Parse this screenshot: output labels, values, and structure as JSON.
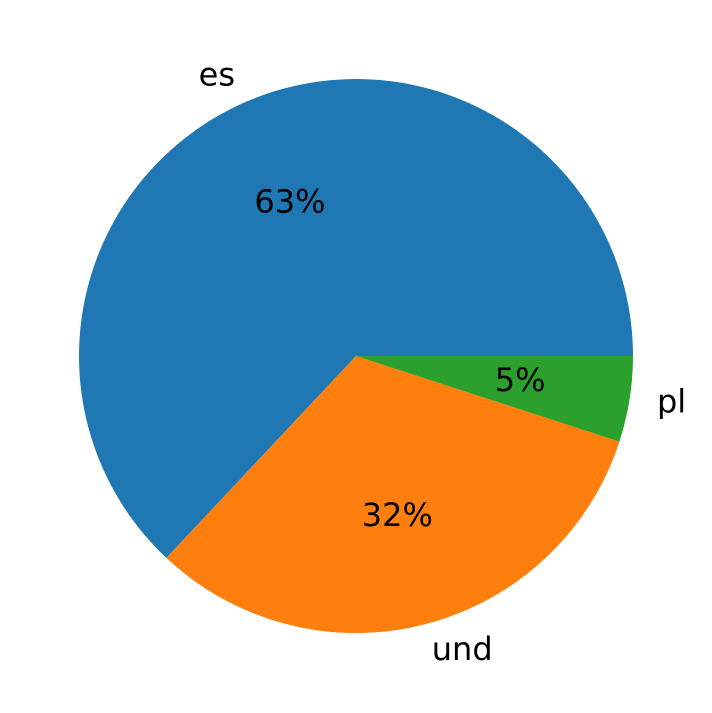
{
  "chart_data": {
    "type": "pie",
    "categories": [
      "es",
      "und",
      "pl"
    ],
    "values": [
      63,
      32,
      5
    ],
    "value_labels": [
      "63%",
      "32%",
      "5%"
    ],
    "colors": [
      "#1f77b4",
      "#ff7f0e",
      "#2ca02c"
    ]
  }
}
